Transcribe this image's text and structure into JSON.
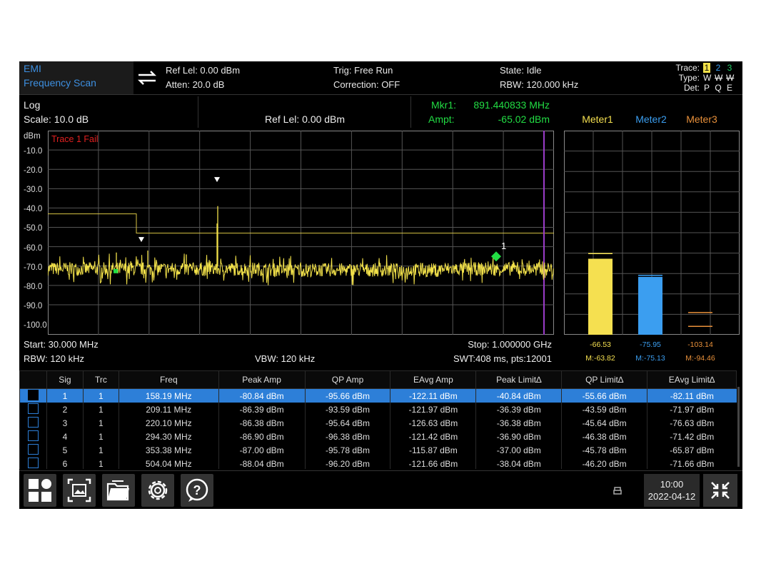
{
  "header": {
    "mode_line1": "EMI",
    "mode_line2": "Frequency Scan",
    "ref_level": "Ref Lel: 0.00 dBm",
    "atten": "Atten: 20.0 dB",
    "trig": "Trig: Free Run",
    "correction": "Correction: OFF",
    "state": "State: Idle",
    "rbw": "RBW: 120.000 kHz",
    "trace_label": "Trace:",
    "type_label": "Type:",
    "det_label": "Det:",
    "trace_nums": [
      "1",
      "2",
      "3"
    ],
    "types": [
      "W",
      "W",
      "W"
    ],
    "dets": [
      "P",
      "Q",
      "E"
    ]
  },
  "info": {
    "scale_mode": "Log",
    "scale": "Scale: 10.0 dB",
    "ref_level": "Ref Lel: 0.00 dBm",
    "mkr_label": "Mkr1:",
    "mkr_value": "891.440833 MHz",
    "ampt_label": "Ampt:",
    "ampt_value": "-65.02 dBm",
    "meter1": "Meter1",
    "meter2": "Meter2",
    "meter3": "Meter3"
  },
  "plot": {
    "unit": "dBm",
    "trace_fail": "Trace 1 Fail",
    "y_ticks": [
      "-10.0",
      "-20.0",
      "-30.0",
      "-40.0",
      "-50.0",
      "-60.0",
      "-70.0",
      "-80.0",
      "-90.0",
      "-100.0"
    ],
    "marker_label": "1",
    "start": "Start: 30.000 MHz",
    "stop": "Stop: 1.000000 GHz",
    "rbw": "RBW: 120 kHz",
    "vbw": "VBW: 120 kHz",
    "swt": "SWT:408 ms, pts:12001"
  },
  "meters": [
    {
      "value": "-66.53",
      "max": "M:-63.82",
      "color": "#f5e050",
      "level_dbm": -66.53,
      "max_dbm": -63.82
    },
    {
      "value": "-75.95",
      "max": "M:-75.13",
      "color": "#3b9ef0",
      "level_dbm": -75.95,
      "max_dbm": -75.13
    },
    {
      "value": "-103.14",
      "max": "M:-94.46",
      "color": "#e8903a",
      "level_dbm": -103.14,
      "max_dbm": -94.46
    }
  ],
  "table": {
    "headers": [
      "Sig",
      "Trc",
      "Freq",
      "Peak Amp",
      "QP Amp",
      "EAvg Amp",
      "Peak Limit∆",
      "QP Limit∆",
      "EAvg Limit∆"
    ],
    "rows": [
      [
        "1",
        "1",
        "158.19 MHz",
        "-80.84 dBm",
        "-95.66 dBm",
        "-122.11 dBm",
        "-40.84 dBm",
        "-55.66 dBm",
        "-82.11 dBm"
      ],
      [
        "2",
        "1",
        "209.11 MHz",
        "-86.39 dBm",
        "-93.59 dBm",
        "-121.97 dBm",
        "-36.39 dBm",
        "-43.59 dBm",
        "-71.97 dBm"
      ],
      [
        "3",
        "1",
        "220.10 MHz",
        "-86.38 dBm",
        "-95.64 dBm",
        "-126.63 dBm",
        "-36.38 dBm",
        "-45.64 dBm",
        "-76.63 dBm"
      ],
      [
        "4",
        "1",
        "294.30 MHz",
        "-86.90 dBm",
        "-96.38 dBm",
        "-121.42 dBm",
        "-36.90 dBm",
        "-46.38 dBm",
        "-71.42 dBm"
      ],
      [
        "5",
        "1",
        "353.38 MHz",
        "-87.00 dBm",
        "-95.78 dBm",
        "-115.87 dBm",
        "-37.00 dBm",
        "-45.78 dBm",
        "-65.87 dBm"
      ],
      [
        "6",
        "1",
        "504.04 MHz",
        "-88.04 dBm",
        "-96.20 dBm",
        "-121.66 dBm",
        "-38.04 dBm",
        "-46.20 dBm",
        "-71.66 dBm"
      ]
    ]
  },
  "taskbar": {
    "time": "10:00",
    "date": "2022-04-12"
  },
  "colors": {
    "trace": "#f2e14a",
    "limit": "#d8c445",
    "accent": "#2d7fd8",
    "marker": "#22dd44",
    "fail": "#e02020",
    "stop_line": "#9a3cc8"
  }
}
